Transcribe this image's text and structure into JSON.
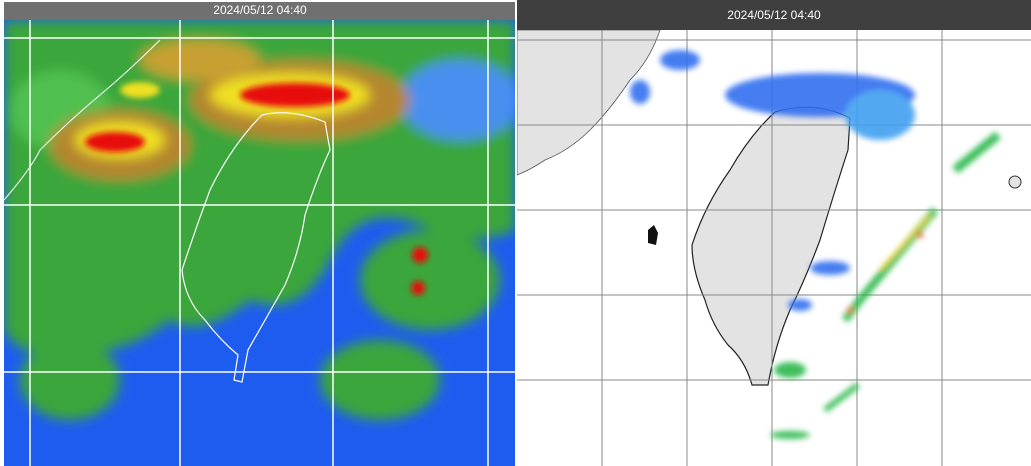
{
  "panels": [
    {
      "title": "2024/05/12 04:40"
    },
    {
      "title": "2024/05/12 04:40"
    }
  ]
}
